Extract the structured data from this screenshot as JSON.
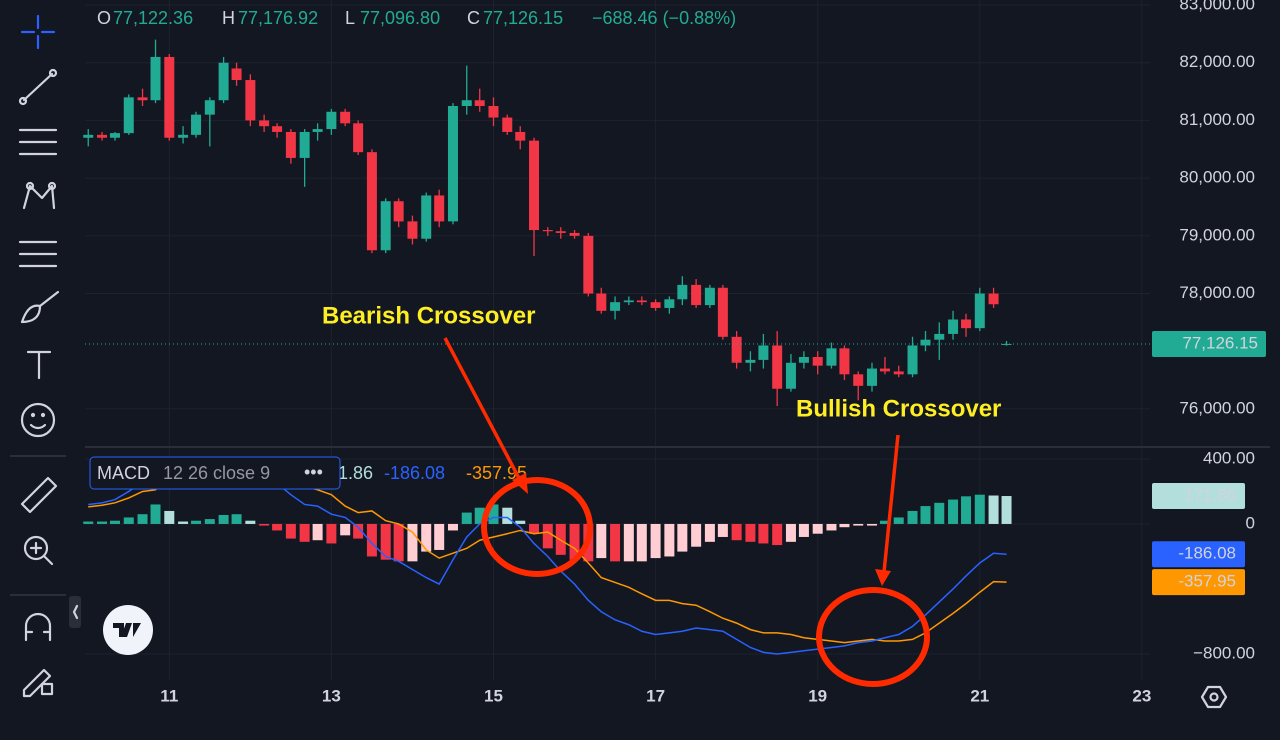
{
  "chart_data": [
    {
      "type": "candlestick",
      "header": [
        {
          "key": "O",
          "value": "77,122.36"
        },
        {
          "key": "H",
          "value": "77,176.92"
        },
        {
          "key": "L",
          "value": "77,096.80"
        },
        {
          "key": "C",
          "value": "77,126.15"
        }
      ],
      "change": "−688.46 (−0.88%)",
      "x": [
        10,
        10.17,
        10.33,
        10.5,
        10.67,
        10.83,
        11,
        11.17,
        11.33,
        11.5,
        11.67,
        11.83,
        12,
        12.17,
        12.33,
        12.5,
        12.67,
        12.83,
        13,
        13.17,
        13.33,
        13.5,
        13.67,
        13.83,
        14,
        14.17,
        14.33,
        14.5,
        14.67,
        14.83,
        15,
        15.17,
        15.33,
        15.5,
        15.67,
        15.83,
        16,
        16.17,
        16.33,
        16.5,
        16.67,
        16.83,
        17,
        17.17,
        17.33,
        17.5,
        17.67,
        17.83,
        18,
        18.17,
        18.33,
        18.5,
        18.67,
        18.83,
        19,
        19.17,
        19.33,
        19.5,
        19.67,
        19.83,
        20,
        20.17,
        20.33,
        20.5,
        20.67,
        20.83,
        21,
        21.17,
        21.33
      ],
      "open": [
        80700,
        80750,
        80700,
        80780,
        81400,
        81350,
        82100,
        80700,
        80750,
        81100,
        81350,
        81900,
        81700,
        81000,
        80900,
        80800,
        80350,
        80800,
        80850,
        81150,
        80950,
        80450,
        78750,
        79600,
        79250,
        78950,
        79700,
        79250,
        81250,
        81350,
        81250,
        81050,
        80800,
        80650,
        79100,
        79080,
        79050,
        79000,
        78000,
        77700,
        77850,
        77880,
        77850,
        77750,
        77900,
        78150,
        77800,
        78100,
        77250,
        76800,
        76850,
        77100,
        76350,
        76800,
        76900,
        76750,
        77050,
        76600,
        76400,
        76700,
        76650,
        76600,
        77100,
        77200,
        77300,
        77550,
        77400,
        78000,
        77122.36
      ],
      "high": [
        80850,
        80800,
        80800,
        81450,
        81550,
        82400,
        82150,
        80900,
        81150,
        81400,
        82100,
        82000,
        81800,
        81100,
        80950,
        80850,
        80850,
        80950,
        81200,
        81200,
        81000,
        80500,
        79650,
        79650,
        79350,
        79750,
        79800,
        81300,
        81950,
        81550,
        81400,
        81100,
        80900,
        80700,
        79150,
        79150,
        79100,
        79050,
        78100,
        77950,
        77950,
        77950,
        77900,
        77950,
        78300,
        78250,
        78150,
        78150,
        77350,
        77000,
        77300,
        77350,
        76950,
        77000,
        77000,
        77150,
        77100,
        76650,
        76800,
        76900,
        76750,
        77250,
        77350,
        77500,
        77700,
        77650,
        78100,
        78100,
        77176.92
      ],
      "low": [
        80550,
        80650,
        80650,
        80750,
        81250,
        81300,
        80650,
        80600,
        80700,
        80550,
        81300,
        81600,
        80900,
        80800,
        80700,
        80250,
        79850,
        80650,
        80750,
        80900,
        80400,
        78700,
        78700,
        79150,
        78850,
        78900,
        79150,
        79200,
        81100,
        81150,
        80900,
        80750,
        80500,
        78650,
        79000,
        78950,
        78950,
        77950,
        77650,
        77550,
        77800,
        77800,
        77700,
        77650,
        77800,
        77750,
        77750,
        77200,
        76700,
        76650,
        76700,
        76050,
        76300,
        76700,
        76600,
        76700,
        76500,
        76150,
        76300,
        76600,
        76550,
        76550,
        77000,
        76850,
        77200,
        77250,
        77350,
        77750,
        77096.8
      ],
      "close": [
        80750,
        80700,
        80780,
        81400,
        81350,
        82100,
        80700,
        80750,
        81100,
        81350,
        82000,
        81700,
        81000,
        80900,
        80800,
        80350,
        80800,
        80850,
        81150,
        80950,
        80450,
        78750,
        79600,
        79250,
        78950,
        79700,
        79250,
        81250,
        81350,
        81250,
        81050,
        80800,
        80650,
        79100,
        79080,
        79050,
        79000,
        78000,
        77700,
        77850,
        77880,
        77850,
        77750,
        77900,
        78150,
        77800,
        78100,
        77250,
        76800,
        76850,
        77100,
        76350,
        76800,
        76900,
        76750,
        77050,
        76600,
        76400,
        76700,
        76650,
        76600,
        77100,
        77200,
        77300,
        77550,
        77400,
        78000,
        77814.61,
        77126.15
      ],
      "up_color": "#22ab94",
      "down_color": "#f23645",
      "xlim": [
        9.96,
        23.1
      ],
      "xticks": [
        11,
        13,
        15,
        17,
        19,
        21,
        23
      ],
      "ylim": [
        75375,
        83087
      ],
      "yticks": [
        {
          "value": 76000,
          "label": "76,000.00"
        },
        {
          "value": 78000,
          "label": "78,000.00"
        },
        {
          "value": 79000,
          "label": "79,000.00"
        },
        {
          "value": 80000,
          "label": "80,000.00"
        },
        {
          "value": 81000,
          "label": "81,000.00"
        },
        {
          "value": 82000,
          "label": "82,000.00"
        },
        {
          "value": 83000,
          "label": "83,000.00"
        }
      ],
      "price_line": {
        "value": 77126.15,
        "label": "77,126.15"
      },
      "grid": true
    },
    {
      "type": "macd",
      "title": "MACD",
      "params": "12 26 close 9",
      "histogram": {
        "values": [
          15,
          15,
          20,
          40,
          60,
          120,
          80,
          15,
          20,
          30,
          55,
          60,
          20,
          -10,
          -40,
          -90,
          -110,
          -100,
          -120,
          -70,
          -90,
          -200,
          -220,
          -230,
          -230,
          -170,
          -160,
          -40,
          70,
          100,
          120,
          100,
          20,
          -60,
          -150,
          -190,
          -220,
          -230,
          -210,
          -230,
          -230,
          -230,
          -210,
          -200,
          -170,
          -140,
          -110,
          -80,
          -100,
          -110,
          -120,
          -130,
          -110,
          -80,
          -60,
          -40,
          -20,
          -10,
          -10,
          20,
          40,
          80,
          110,
          130,
          150,
          170,
          180,
          175,
          171.86
        ],
        "colors": {
          "rise_up": "#22ab94",
          "fall_up": "#b2dfdb",
          "fall_down": "#f23645",
          "rise_down": "#ffcdd2"
        }
      },
      "macd_line": {
        "color": "#2962ff",
        "values": [
          120,
          130,
          150,
          200,
          260,
          330,
          380,
          380,
          370,
          370,
          390,
          400,
          360,
          300,
          250,
          180,
          120,
          110,
          60,
          40,
          -20,
          -120,
          -200,
          -230,
          -280,
          -330,
          -370,
          -220,
          -80,
          0,
          40,
          40,
          -20,
          -120,
          -200,
          -290,
          -370,
          -470,
          -540,
          -590,
          -620,
          -660,
          -680,
          -670,
          -660,
          -640,
          -650,
          -660,
          -710,
          -760,
          -790,
          -800,
          -790,
          -780,
          -770,
          -760,
          -750,
          -730,
          -720,
          -700,
          -680,
          -630,
          -560,
          -480,
          -400,
          -320,
          -240,
          -180,
          -186.08
        ]
      },
      "signal_line": {
        "color": "#ff9800",
        "values": [
          105,
          115,
          130,
          160,
          200,
          210,
          300,
          365,
          350,
          340,
          335,
          340,
          340,
          310,
          290,
          270,
          230,
          210,
          180,
          110,
          70,
          80,
          20,
          0,
          -50,
          -160,
          -210,
          -180,
          -150,
          -100,
          -80,
          -60,
          -40,
          -60,
          -50,
          -100,
          -150,
          -240,
          -330,
          -360,
          -390,
          -430,
          -470,
          -470,
          -490,
          -500,
          -540,
          -580,
          -610,
          -650,
          -670,
          -670,
          -680,
          -700,
          -710,
          -720,
          -730,
          -720,
          -710,
          -720,
          -720,
          -710,
          -670,
          -610,
          -550,
          -490,
          -420,
          -355,
          -357.95
        ]
      },
      "ylim": [
        -960,
        455
      ],
      "yticks": [
        {
          "value": 400,
          "label": "400.00"
        },
        0,
        {
          "value": -800,
          "label": "−800.00"
        }
      ],
      "annotations": [
        "Bearish Crossover",
        "Bullish Crossover"
      ]
    }
  ]
}
